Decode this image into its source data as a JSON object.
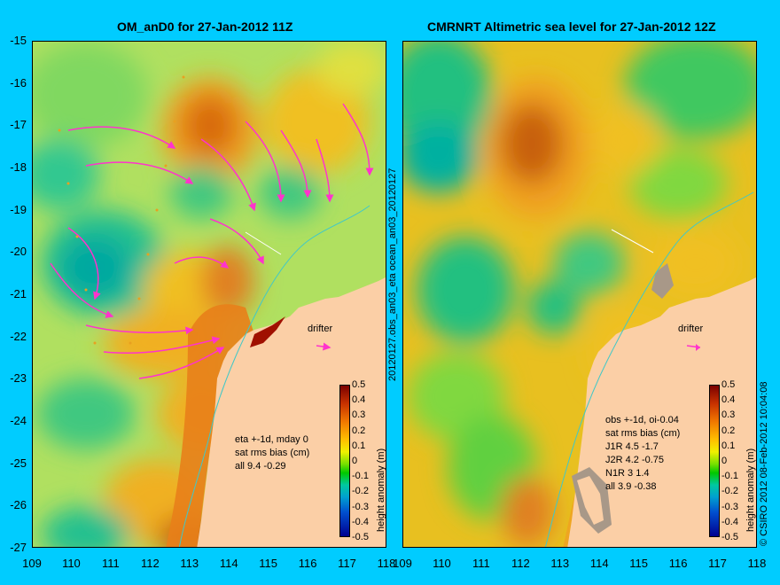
{
  "left_title": "OM_anD0 for 27-Jan-2012 11Z",
  "right_title": "CMRNRT Altimetric sea level  for 27-Jan-2012 12Z",
  "y_ticks": [
    "-15",
    "-16",
    "-17",
    "-18",
    "-19",
    "-20",
    "-21",
    "-22",
    "-23",
    "-24",
    "-25",
    "-26",
    "-27"
  ],
  "x_ticks_left": [
    "109",
    "110",
    "111",
    "112",
    "113",
    "114",
    "115",
    "116",
    "117",
    "118"
  ],
  "x_ticks_right": [
    "109",
    "110",
    "111",
    "112",
    "113",
    "114",
    "115",
    "116",
    "117",
    "118"
  ],
  "side_label": "20120127.obs_an03_eta   ocean_an03_20120127",
  "left_info": [
    "eta +-1d, mday 0",
    "sat rms bias (cm)",
    "all 9.4 -0.29"
  ],
  "right_info": [
    "obs +-1d, oi-0.04",
    "sat rms bias (cm)",
    "J1R  4.5 -1.7",
    "J2R  4.2 -0.75",
    "N1R  3 1.4",
    "all 3.9 -0.38"
  ],
  "drifter_label": "drifter",
  "colorbar_ticks": [
    "0.5",
    "0.4",
    "0.3",
    "0.2",
    "0.1",
    "0",
    "-0.1",
    "-0.2",
    "-0.3",
    "-0.4",
    "-0.5"
  ],
  "colorbar_label": "height anomaly (m)",
  "copyright": "© CSIRO 2012  08-Feb-2012 10:04:08",
  "colors": {
    "background": "#00ccff",
    "land": "#fbcfa6",
    "arrow": "#ff33cc"
  }
}
